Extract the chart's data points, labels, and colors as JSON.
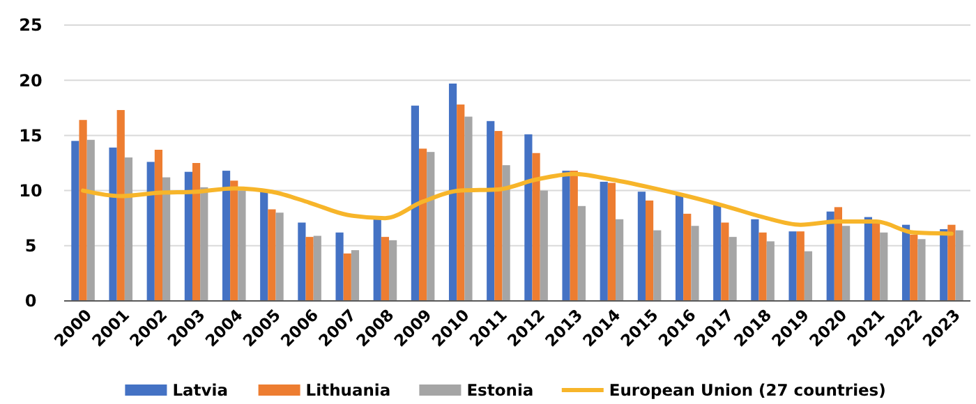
{
  "chart_data": {
    "type": "bar",
    "categories": [
      "2000",
      "2001",
      "2002",
      "2003",
      "2004",
      "2005",
      "2006",
      "2007",
      "2008",
      "2009",
      "2010",
      "2011",
      "2012",
      "2013",
      "2014",
      "2015",
      "2016",
      "2017",
      "2018",
      "2019",
      "2020",
      "2021",
      "2022",
      "2023"
    ],
    "series": [
      {
        "name": "Latvia",
        "color": "#4472c4",
        "values": [
          14.5,
          13.9,
          12.6,
          11.7,
          11.8,
          10.1,
          7.1,
          6.2,
          7.7,
          17.7,
          19.7,
          16.3,
          15.1,
          11.8,
          10.8,
          9.9,
          9.6,
          8.7,
          7.4,
          6.3,
          8.1,
          7.6,
          6.9,
          6.5
        ]
      },
      {
        "name": "Lithuania",
        "color": "#ed7d31",
        "values": [
          16.4,
          17.3,
          13.7,
          12.5,
          10.9,
          8.3,
          5.8,
          4.3,
          5.8,
          13.8,
          17.8,
          15.4,
          13.4,
          11.8,
          10.7,
          9.1,
          7.9,
          7.1,
          6.2,
          6.3,
          8.5,
          7.1,
          6.0,
          6.9
        ]
      },
      {
        "name": "Estonia",
        "color": "#a5a5a5",
        "values": [
          14.6,
          13.0,
          11.2,
          10.3,
          10.0,
          8.0,
          5.9,
          4.6,
          5.5,
          13.5,
          16.7,
          12.3,
          10.0,
          8.6,
          7.4,
          6.4,
          6.8,
          5.8,
          5.4,
          4.5,
          6.8,
          6.2,
          5.6,
          6.4
        ]
      },
      {
        "name": "European Union (27 countries)",
        "type": "line",
        "color": "#f7b52a",
        "values": [
          10.0,
          9.5,
          9.8,
          9.9,
          10.2,
          9.9,
          8.9,
          7.8,
          7.5,
          9.0,
          10.0,
          10.1,
          11.0,
          11.5,
          11.0,
          10.3,
          9.5,
          8.6,
          7.6,
          6.9,
          7.2,
          7.2,
          6.2,
          6.1
        ]
      }
    ],
    "ylim": [
      0,
      25
    ],
    "yticks": [
      0,
      5,
      10,
      15,
      20,
      25
    ],
    "grid": "y",
    "legend": "bottom"
  }
}
